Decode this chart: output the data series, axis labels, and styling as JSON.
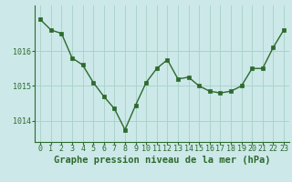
{
  "x": [
    0,
    1,
    2,
    3,
    4,
    5,
    6,
    7,
    8,
    9,
    10,
    11,
    12,
    13,
    14,
    15,
    16,
    17,
    18,
    19,
    20,
    21,
    22,
    23
  ],
  "y": [
    1016.9,
    1016.6,
    1016.5,
    1015.8,
    1015.6,
    1015.1,
    1014.7,
    1014.35,
    1013.75,
    1014.45,
    1015.1,
    1015.5,
    1015.75,
    1015.2,
    1015.25,
    1015.0,
    1014.85,
    1014.8,
    1014.85,
    1015.0,
    1015.5,
    1015.5,
    1016.1,
    1016.6
  ],
  "line_color": "#2d6a2d",
  "marker_color": "#2d6a2d",
  "bg_color": "#cce8e8",
  "grid_major_color": "#aad4cc",
  "grid_minor_color": "#bbddd8",
  "title": "Graphe pression niveau de la mer (hPa)",
  "xlabel_ticks": [
    0,
    1,
    2,
    3,
    4,
    5,
    6,
    7,
    8,
    9,
    10,
    11,
    12,
    13,
    14,
    15,
    16,
    17,
    18,
    19,
    20,
    21,
    22,
    23
  ],
  "yticks": [
    1014,
    1015,
    1016
  ],
  "ylim": [
    1013.4,
    1017.3
  ],
  "xlim": [
    -0.5,
    23.5
  ],
  "title_fontsize": 7.5,
  "tick_fontsize": 6.0
}
